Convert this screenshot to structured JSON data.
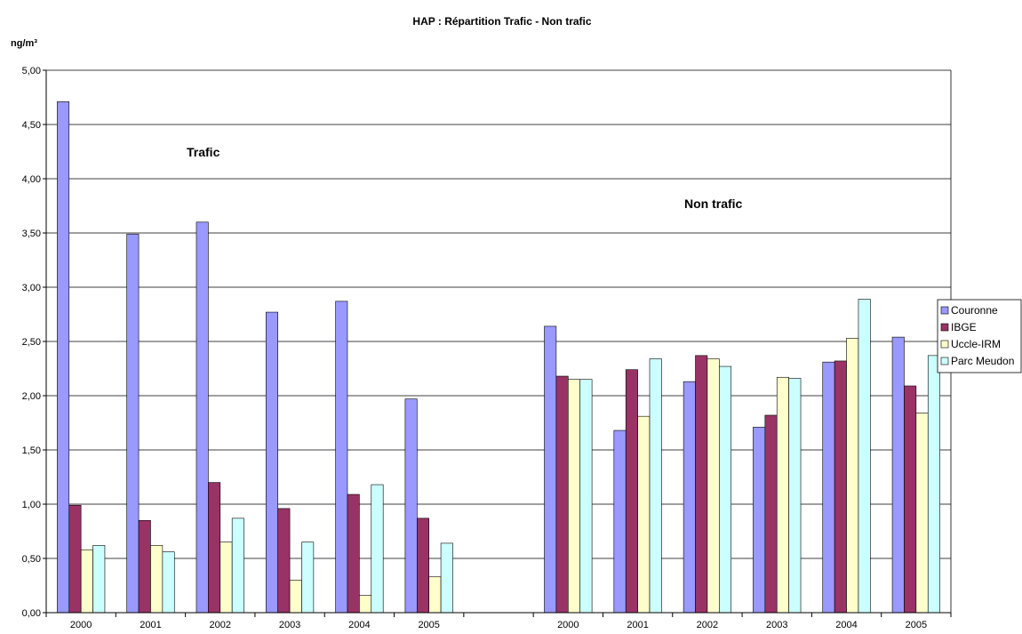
{
  "chart_data": {
    "type": "bar",
    "title": "HAP : Répartition Trafic - Non trafic",
    "ylabel": "ng/m³",
    "ylim": [
      0,
      5
    ],
    "yticks": [
      "0,00",
      "0,50",
      "1,00",
      "1,50",
      "2,00",
      "2,50",
      "3,00",
      "3,50",
      "4,00",
      "4,50",
      "5,00"
    ],
    "categories": [
      "2000",
      "2001",
      "2002",
      "2003",
      "2004",
      "2005",
      "",
      "2000",
      "2001",
      "2002",
      "2003",
      "2004",
      "2005"
    ],
    "annotations": [
      "Trafic",
      "Non trafic"
    ],
    "grid": "horizontal",
    "legend_position": "right",
    "series": [
      {
        "name": "Couronne",
        "color": "#9999ff",
        "values": [
          4.71,
          3.49,
          3.6,
          2.77,
          2.87,
          1.97,
          null,
          2.64,
          1.68,
          2.13,
          1.71,
          2.31,
          2.54
        ]
      },
      {
        "name": "IBGE",
        "color": "#993366",
        "values": [
          0.99,
          0.85,
          1.2,
          0.96,
          1.09,
          0.87,
          null,
          2.18,
          2.24,
          2.37,
          1.82,
          2.32,
          2.09
        ]
      },
      {
        "name": "Uccle-IRM",
        "color": "#ffffcc",
        "values": [
          0.58,
          0.62,
          0.65,
          0.3,
          0.16,
          0.33,
          null,
          2.15,
          1.81,
          2.34,
          2.17,
          2.53,
          1.84
        ]
      },
      {
        "name": "Parc Meudon",
        "color": "#ccffff",
        "values": [
          0.62,
          0.56,
          0.87,
          0.65,
          1.18,
          0.64,
          null,
          2.15,
          2.34,
          2.27,
          2.16,
          2.89,
          2.37
        ]
      }
    ]
  }
}
